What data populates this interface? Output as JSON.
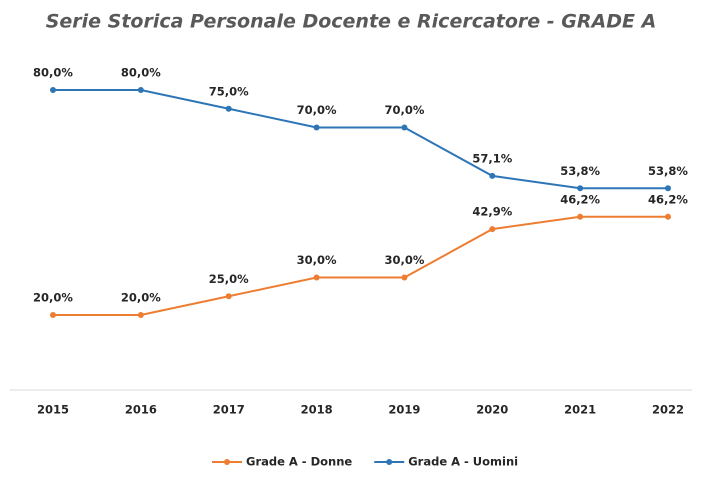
{
  "chart_data": {
    "type": "line",
    "title": "Serie Storica Personale Docente e Ricercatore - GRADE A",
    "categories": [
      "2015",
      "2016",
      "2017",
      "2018",
      "2019",
      "2020",
      "2021",
      "2022"
    ],
    "series": [
      {
        "name": "Grade A - Donne",
        "color": "#ed7d31",
        "values": [
          20,
          20,
          25,
          30,
          30,
          42.9,
          46.2,
          46.2
        ],
        "value_labels": [
          "20,0%",
          "20,0%",
          "25,0%",
          "30,0%",
          "30,0%",
          "42,9%",
          "46,2%",
          "46,2%"
        ]
      },
      {
        "name": "Grade A - Uomini",
        "color": "#2e75b6",
        "values": [
          80,
          80,
          75,
          70,
          70,
          57.1,
          53.8,
          53.8
        ],
        "value_labels": [
          "80,0%",
          "80,0%",
          "75,0%",
          "70,0%",
          "70,0%",
          "57,1%",
          "53,8%",
          "53,8%"
        ]
      }
    ],
    "ylim": [
      0,
      100
    ],
    "legend": "bottom"
  }
}
